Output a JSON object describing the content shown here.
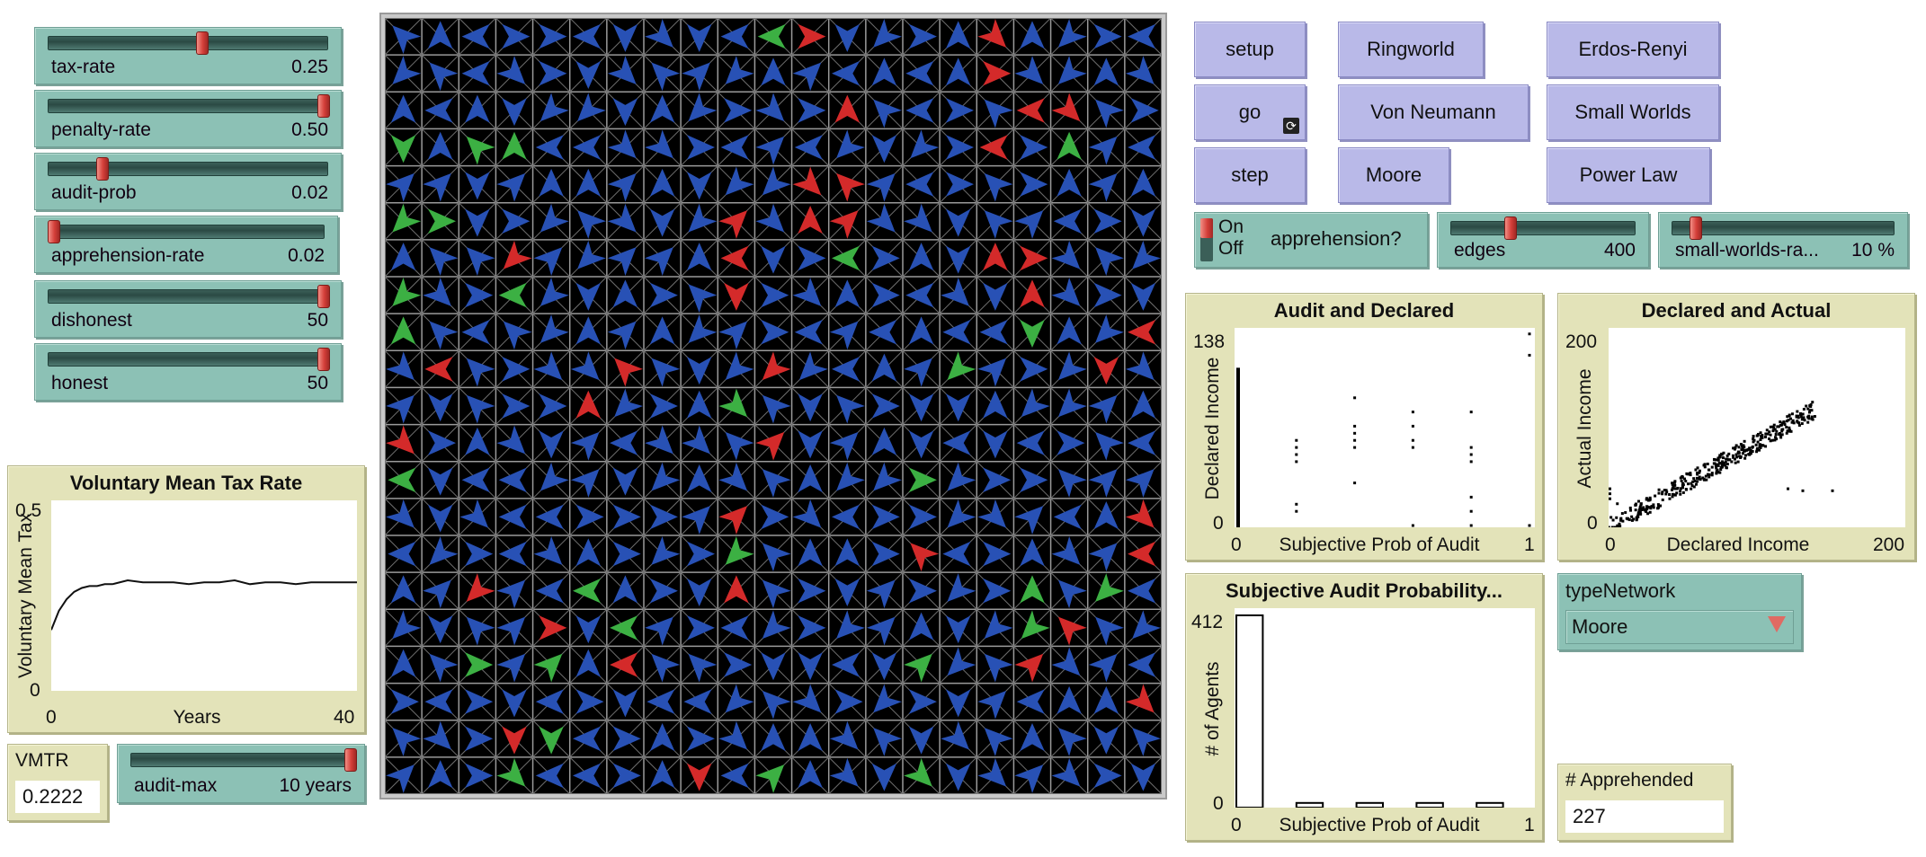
{
  "sliders": [
    {
      "id": "tax-rate",
      "label": "tax-rate",
      "value": "0.25",
      "pos": 0.55
    },
    {
      "id": "penalty-rate",
      "label": "penalty-rate",
      "value": "0.50",
      "pos": 1.0
    },
    {
      "id": "audit-prob",
      "label": "audit-prob",
      "value": "0.02",
      "pos": 0.18
    },
    {
      "id": "apprehension-rate",
      "label": "apprehension-rate",
      "value": "0.02",
      "pos": 0.0
    },
    {
      "id": "dishonest",
      "label": "dishonest",
      "value": "50",
      "pos": 1.0
    },
    {
      "id": "honest",
      "label": "honest",
      "value": "50",
      "pos": 1.0
    }
  ],
  "buttons": {
    "setup": "setup",
    "go": "go",
    "step": "step",
    "ringworld": "Ringworld",
    "von_neumann": "Von Neumann",
    "moore": "Moore",
    "erdos_renyi": "Erdos-Renyi",
    "small_worlds": "Small Worlds",
    "power_law": "Power Law"
  },
  "switch": {
    "on": "On",
    "off": "Off",
    "label": "apprehension?",
    "state": "on"
  },
  "edges_slider": {
    "label": "edges",
    "value": "400",
    "pos": 0.3
  },
  "small_worlds_slider": {
    "label": "small-worlds-ra...",
    "value": "10 %",
    "pos": 0.1
  },
  "audit_max_slider": {
    "label": "audit-max",
    "value": "10 years",
    "pos": 1.0
  },
  "vmtr_monitor": {
    "label": "VMTR",
    "value": "0.2222"
  },
  "apprehended_monitor": {
    "label": "# Apprehended",
    "value": "227"
  },
  "chooser": {
    "label": "typeNetwork",
    "value": "Moore"
  },
  "plots": {
    "vmtr": {
      "title": "Voluntary Mean Tax Rate",
      "ylabel": "Voluntary Mean Tax",
      "xlabel": "Years",
      "ymax": "0.5",
      "ymin": "0",
      "xmin": "0",
      "xmax": "40"
    },
    "audit_declared": {
      "title": "Audit and Declared",
      "ylabel": "Declared Income",
      "xlabel": "Subjective Prob of Audit",
      "ymax": "138",
      "ymin": "0",
      "xmin": "0",
      "xmax": "1"
    },
    "declared_actual": {
      "title": "Declared and Actual",
      "ylabel": "Actual Income",
      "xlabel": "Declared Income",
      "ymax": "200",
      "ymin": "0",
      "xmin": "0",
      "xmax": "200"
    },
    "subjective_hist": {
      "title": "Subjective Audit Probability...",
      "ylabel": "# of Agents",
      "xlabel": "Subjective Prob of Audit",
      "ymax": "412",
      "ymin": "0",
      "xmin": "0",
      "xmax": "1"
    }
  },
  "chart_data": [
    {
      "type": "line",
      "title": "Voluntary Mean Tax Rate",
      "xlabel": "Years",
      "ylabel": "Voluntary Mean Tax",
      "xlim": [
        0,
        40
      ],
      "ylim": [
        0,
        0.5
      ],
      "x": [
        0,
        1,
        2,
        3,
        4,
        5,
        6,
        7,
        8,
        10,
        12,
        14,
        16,
        18,
        20,
        22,
        24,
        26,
        28,
        30,
        32,
        34,
        36,
        38,
        40
      ],
      "series": [
        {
          "values": [
            0.16,
            0.21,
            0.24,
            0.26,
            0.27,
            0.275,
            0.275,
            0.28,
            0.28,
            0.29,
            0.285,
            0.285,
            0.285,
            0.28,
            0.285,
            0.285,
            0.29,
            0.28,
            0.285,
            0.285,
            0.28,
            0.285,
            0.285,
            0.285,
            0.285
          ]
        }
      ]
    },
    {
      "type": "scatter",
      "title": "Audit and Declared",
      "xlabel": "Subjective Prob of Audit",
      "ylabel": "Declared Income",
      "xlim": [
        0,
        1
      ],
      "ylim": [
        0,
        138
      ],
      "points": [
        [
          0,
          5
        ],
        [
          0,
          20
        ],
        [
          0,
          40
        ],
        [
          0,
          60
        ],
        [
          0,
          80
        ],
        [
          0,
          100
        ],
        [
          0.2,
          10
        ],
        [
          0.2,
          15
        ],
        [
          0.2,
          45
        ],
        [
          0.2,
          50
        ],
        [
          0.2,
          55
        ],
        [
          0.2,
          60
        ],
        [
          0.4,
          30
        ],
        [
          0.4,
          55
        ],
        [
          0.4,
          60
        ],
        [
          0.4,
          65
        ],
        [
          0.4,
          70
        ],
        [
          0.4,
          90
        ],
        [
          0.6,
          0
        ],
        [
          0.6,
          55
        ],
        [
          0.6,
          60
        ],
        [
          0.6,
          70
        ],
        [
          0.6,
          80
        ],
        [
          0.8,
          0
        ],
        [
          0.8,
          10
        ],
        [
          0.8,
          20
        ],
        [
          0.8,
          45
        ],
        [
          0.8,
          50
        ],
        [
          0.8,
          55
        ],
        [
          0.8,
          80
        ],
        [
          1,
          0
        ],
        [
          1,
          120
        ],
        [
          1,
          135
        ]
      ]
    },
    {
      "type": "scatter",
      "title": "Declared and Actual",
      "xlabel": "Declared Income",
      "ylabel": "Actual Income",
      "xlim": [
        0,
        200
      ],
      "ylim": [
        0,
        200
      ]
    },
    {
      "type": "bar",
      "title": "Subjective Audit Probability...",
      "xlabel": "Subjective Prob of Audit",
      "ylabel": "# of Agents",
      "xlim": [
        0,
        1
      ],
      "ylim": [
        0,
        412
      ],
      "categories": [
        "0.0",
        "0.1",
        "0.2",
        "0.3",
        "0.4",
        "0.5",
        "0.6",
        "0.7",
        "0.8",
        "0.9"
      ],
      "values": [
        412,
        0,
        10,
        0,
        10,
        0,
        10,
        0,
        10,
        0
      ]
    }
  ]
}
